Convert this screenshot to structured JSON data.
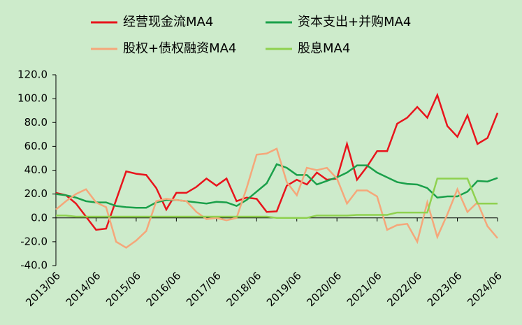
{
  "chart_data": {
    "type": "line",
    "legend": {
      "position": "top",
      "columns": 2
    },
    "categories": [
      "2013/06",
      null,
      null,
      null,
      "2014/06",
      null,
      null,
      null,
      "2015/06",
      null,
      null,
      null,
      "2016/06",
      null,
      null,
      null,
      "2017/06",
      null,
      null,
      null,
      "2018/06",
      null,
      null,
      null,
      "2019/06",
      null,
      null,
      null,
      "2020/06",
      null,
      null,
      null,
      "2021/06",
      null,
      null,
      null,
      "2022/06",
      null,
      null,
      null,
      "2023/06",
      null,
      null,
      null,
      "2024/06"
    ],
    "series": [
      {
        "name": "经营现金流MA4",
        "color": "#e8141c",
        "values": [
          21,
          19,
          12,
          1,
          -10,
          -9,
          15,
          39,
          37,
          36,
          25,
          7,
          21,
          21,
          26,
          33,
          27,
          33,
          14,
          17,
          16,
          5,
          5.5,
          27,
          32,
          28,
          38,
          32,
          33,
          62,
          32,
          43,
          56,
          56,
          79,
          84,
          93,
          84,
          103,
          77,
          68,
          86,
          62,
          67,
          88
        ]
      },
      {
        "name": "资本支出+并购MA4",
        "color": "#1aa04a",
        "values": [
          20,
          19,
          17,
          14,
          13,
          13,
          10,
          9,
          8.5,
          8.5,
          13,
          15,
          15,
          14,
          13,
          12,
          13.5,
          13,
          10,
          15,
          22,
          29,
          45,
          42,
          36,
          36,
          28,
          31,
          34,
          38,
          44,
          44,
          38,
          34,
          30,
          28.5,
          28,
          25,
          17,
          18,
          18,
          22,
          31,
          30.5,
          33.5
        ]
      },
      {
        "name": "股权+债权融资MA4",
        "color": "#f5a77a",
        "values": [
          7,
          14,
          20,
          24,
          13,
          9,
          -20,
          -25,
          -19,
          -11,
          14,
          16,
          15,
          14,
          5,
          -1,
          0,
          -2,
          0,
          25,
          53,
          54,
          58,
          30,
          19,
          42,
          40,
          42,
          33,
          12,
          23,
          23,
          18,
          -10,
          -6,
          -5,
          -20,
          13,
          -16,
          3,
          24,
          5,
          13,
          -7,
          -17
        ]
      },
      {
        "name": "股息MA4",
        "color": "#8fd14f",
        "values": [
          2,
          2,
          1,
          1,
          1,
          1,
          1,
          1,
          1,
          1,
          1,
          1,
          1,
          1,
          1,
          1,
          1,
          1,
          1,
          1,
          1,
          1,
          0,
          0,
          0,
          0,
          2,
          2,
          2,
          2,
          2.5,
          2.5,
          2.5,
          2.5,
          4.5,
          4.5,
          4.5,
          4.5,
          33,
          33,
          33,
          33,
          12,
          12,
          12
        ]
      }
    ],
    "ylim": [
      -40,
      120
    ],
    "yticks": [
      {
        "value": -40,
        "label": "-40.0"
      },
      {
        "value": -20,
        "label": "-20.0"
      },
      {
        "value": 0,
        "label": "0.0"
      },
      {
        "value": 20,
        "label": "20.0"
      },
      {
        "value": 40,
        "label": "40.0"
      },
      {
        "value": 60,
        "label": "60.0"
      },
      {
        "value": 80,
        "label": "80.0"
      },
      {
        "value": 100,
        "label": "100.0"
      },
      {
        "value": 120,
        "label": "120.0"
      }
    ]
  }
}
